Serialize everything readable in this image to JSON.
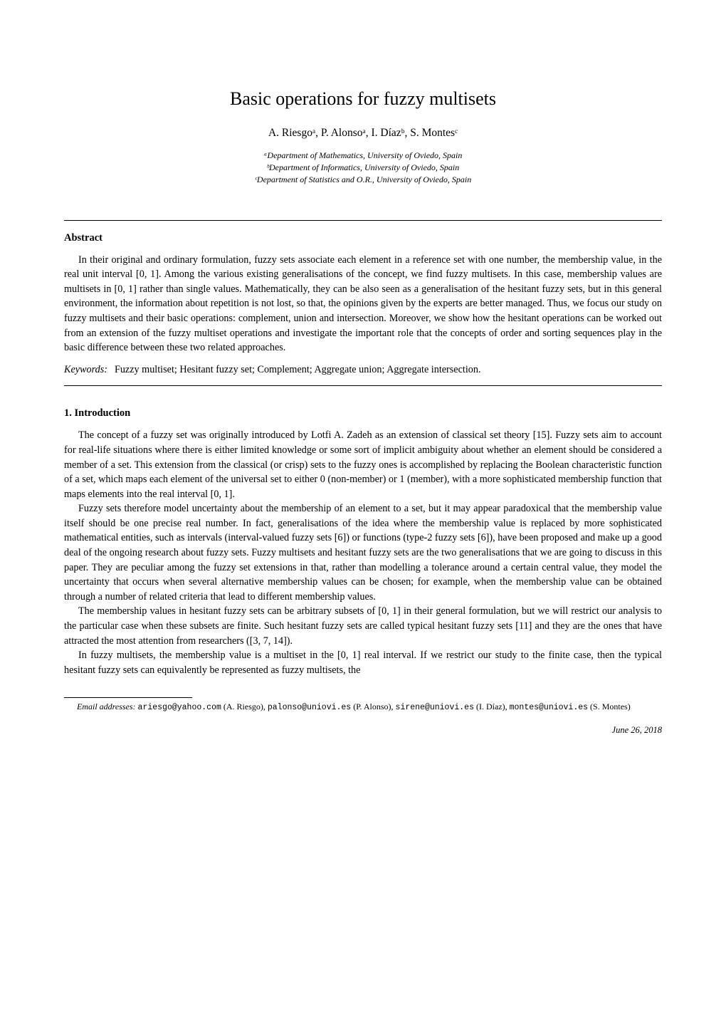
{
  "title": "Basic operations for fuzzy multisets",
  "authors_line": "A. Riesgoᵃ, P. Alonsoᵃ, I. Díazᵇ, S. Montesᶜ",
  "affiliations": {
    "a": "ᵃDepartment of Mathematics, University of Oviedo, Spain",
    "b": "ᵇDepartment of Informatics, University of Oviedo, Spain",
    "c": "ᶜDepartment of Statistics and O.R., University of Oviedo, Spain"
  },
  "abstract": {
    "heading": "Abstract",
    "text": "In their original and ordinary formulation, fuzzy sets associate each element in a reference set with one number, the membership value, in the real unit interval [0, 1]. Among the various existing generalisations of the concept, we find fuzzy multisets. In this case, membership values are multisets in [0, 1] rather than single values. Mathematically, they can be also seen as a generalisation of the hesitant fuzzy sets, but in this general environment, the information about repetition is not lost, so that, the opinions given by the experts are better managed. Thus, we focus our study on fuzzy multisets and their basic operations: complement, union and intersection. Moreover, we show how the hesitant operations can be worked out from an extension of the fuzzy multiset operations and investigate the important role that the concepts of order and sorting sequences play in the basic difference between these two related approaches."
  },
  "keywords": {
    "label": "Keywords:",
    "content": "Fuzzy multiset; Hesitant fuzzy set; Complement; Aggregate union; Aggregate intersection."
  },
  "section1": {
    "heading": "1.  Introduction",
    "para1": "The concept of a fuzzy set was originally introduced by Lotfi A. Zadeh as an extension of classical set theory [15]. Fuzzy sets aim to account for real-life situations where there is either limited knowledge or some sort of implicit ambiguity about whether an element should be considered a member of a set. This extension from the classical (or crisp) sets to the fuzzy ones is accomplished by replacing the Boolean characteristic function of a set, which maps each element of the universal set to either 0 (non-member) or 1 (member), with a more sophisticated membership function that maps elements into the real interval [0, 1].",
    "para2": "Fuzzy sets therefore model uncertainty about the membership of an element to a set, but it may appear paradoxical that the membership value itself should be one precise real number. In fact, generalisations of the idea where the membership value is replaced by more sophisticated mathematical entities, such as intervals (interval-valued fuzzy sets [6]) or functions (type-2 fuzzy sets [6]), have been proposed and make up a good deal of the ongoing research about fuzzy sets. Fuzzy multisets and hesitant fuzzy sets are the two generalisations that we are going to discuss in this paper. They are peculiar among the fuzzy set extensions in that, rather than modelling a tolerance around a certain central value, they model the uncertainty that occurs when several alternative membership values can be chosen; for example, when the membership value can be obtained through a number of related criteria that lead to different membership values.",
    "para3": "The membership values in hesitant fuzzy sets can be arbitrary subsets of [0, 1] in their general formulation, but we will restrict our analysis to the particular case when these subsets are finite. Such hesitant fuzzy sets are called typical hesitant fuzzy sets [11] and they are the ones that have attracted the most attention from researchers ([3, 7, 14]).",
    "para4": "In fuzzy multisets, the membership value is a multiset in the [0, 1] real interval. If we restrict our study to the finite case, then the typical hesitant fuzzy sets can equivalently be represented as fuzzy multisets, the"
  },
  "footnote": {
    "label": "Email addresses:",
    "emails": [
      {
        "addr": "ariesgo@yahoo.com",
        "name": "(A. Riesgo)"
      },
      {
        "addr": "palonso@uniovi.es",
        "name": "(P. Alonso)"
      },
      {
        "addr": "sirene@uniovi.es",
        "name": "(I. Díaz)"
      },
      {
        "addr": "montes@uniovi.es",
        "name": "(S. Montes)"
      }
    ],
    "rendered": "ariesgo@yahoo.com (A. Riesgo), palonso@uniovi.es (P. Alonso), sirene@uniovi.es (I. Díaz), montes@uniovi.es (S. Montes)"
  },
  "date": "June 26, 2018"
}
